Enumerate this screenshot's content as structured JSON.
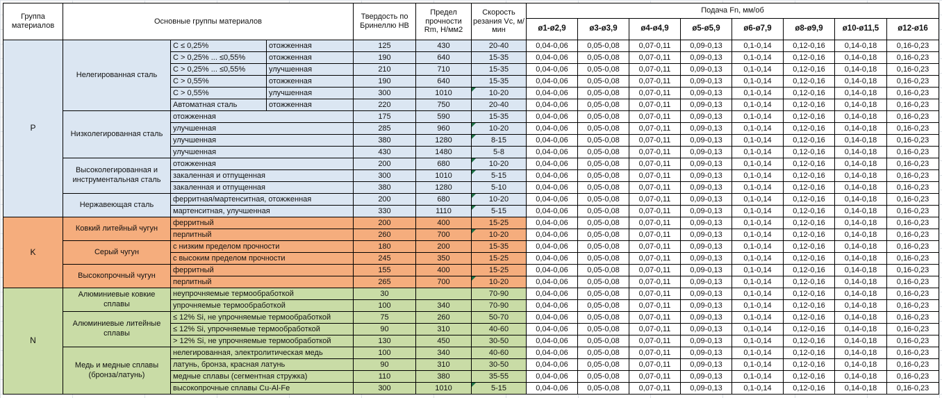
{
  "header": {
    "group_col": "Группа материалов",
    "material_col": "Основные группы материалов",
    "hb_col": "Твердость по Бринеллю HB",
    "rm_col": "Предел прочности Rm, Н/мм2",
    "vc_col": "Скорость резания Vc, м/мин",
    "feed_title": "Подача Fn, мм/об",
    "feed_cols": [
      "ø1-ø2,9",
      "ø3-ø3,9",
      "ø4-ø4,9",
      "ø5-ø5,9",
      "ø6-ø7,9",
      "ø8-ø9,9",
      "ø10-ø11,5",
      "ø12-ø16"
    ]
  },
  "feed_values": [
    "0,04-0,06",
    "0,05-0,08",
    "0,07-0,11",
    "0,09-0,13",
    "0,1-0,14",
    "0,12-0,16",
    "0,14-0,18",
    "0,16-0,23"
  ],
  "colors": {
    "group_p": "#dbe6f2",
    "group_k": "#f5ad7d",
    "group_n": "#c9dca6",
    "flag_triangle": "#1e7145",
    "border": "#000000"
  },
  "groups": [
    {
      "code": "P",
      "color": "#dbe6f2",
      "families": [
        {
          "name": "Нелегированная сталь",
          "rows": [
            {
              "spec": "C ≤ 0,25%",
              "state": "отожженная",
              "hb": "125",
              "rm": "430",
              "vc": "20-40",
              "flag": false
            },
            {
              "spec": "C > 0,25% ... ≤0,55%",
              "state": "отожженная",
              "hb": "190",
              "rm": "640",
              "vc": "15-35",
              "flag": false
            },
            {
              "spec": "C > 0,25% ... ≤0,55%",
              "state": "улучшенная",
              "hb": "210",
              "rm": "710",
              "vc": "15-35",
              "flag": false
            },
            {
              "spec": "C > 0,55%",
              "state": "отожженная",
              "hb": "190",
              "rm": "640",
              "vc": "15-35",
              "flag": false
            },
            {
              "spec": "C > 0,55%",
              "state": "улучшенная",
              "hb": "300",
              "rm": "1010",
              "vc": "10-20",
              "flag": true
            },
            {
              "spec": "Автоматная сталь",
              "state": "отожженная",
              "hb": "220",
              "rm": "750",
              "vc": "20-40",
              "flag": false
            }
          ]
        },
        {
          "name": "Низколегированная сталь",
          "rows": [
            {
              "spec": "отожженная",
              "state": null,
              "hb": "175",
              "rm": "590",
              "vc": "15-35",
              "flag": false
            },
            {
              "spec": "улучшенная",
              "state": null,
              "hb": "285",
              "rm": "960",
              "vc": "10-20",
              "flag": true
            },
            {
              "spec": "улучшенная",
              "state": null,
              "hb": "380",
              "rm": "1280",
              "vc": "8-15",
              "flag": true
            },
            {
              "spec": "улучшенная",
              "state": null,
              "hb": "430",
              "rm": "1480",
              "vc": "5-8",
              "flag": false
            }
          ]
        },
        {
          "name": "Высоколегированная и инструментальная сталь",
          "rows": [
            {
              "spec": "отожженная",
              "state": null,
              "hb": "200",
              "rm": "680",
              "vc": "10-20",
              "flag": true
            },
            {
              "spec": "закаленная и отпущенная",
              "state": null,
              "hb": "300",
              "rm": "1010",
              "vc": "5-15",
              "flag": true
            },
            {
              "spec": "закаленная и отпущенная",
              "state": null,
              "hb": "380",
              "rm": "1280",
              "vc": "5-10",
              "flag": false
            }
          ]
        },
        {
          "name": "Нержавеющая сталь",
          "rows": [
            {
              "spec": "ферритная/мартенситная, отожженная",
              "state": null,
              "hb": "200",
              "rm": "680",
              "vc": "10-20",
              "flag": true
            },
            {
              "spec": "мартенситная, улучшенная",
              "state": null,
              "hb": "330",
              "rm": "1110",
              "vc": "5-15",
              "flag": true
            }
          ]
        }
      ]
    },
    {
      "code": "K",
      "color": "#f5ad7d",
      "families": [
        {
          "name": "Ковкий литейный чугун",
          "rows": [
            {
              "spec": "ферритный",
              "state": null,
              "hb": "200",
              "rm": "400",
              "vc": "15-25",
              "flag": false
            },
            {
              "spec": "перлитный",
              "state": null,
              "hb": "260",
              "rm": "700",
              "vc": "10-20",
              "flag": true
            }
          ]
        },
        {
          "name": "Серый чугун",
          "rows": [
            {
              "spec": "с низким пределом прочности",
              "state": null,
              "hb": "180",
              "rm": "200",
              "vc": "15-35",
              "flag": false
            },
            {
              "spec": "с высоким пределом прочности",
              "state": null,
              "hb": "245",
              "rm": "350",
              "vc": "15-25",
              "flag": false
            }
          ]
        },
        {
          "name": "Высокопрочный чугун",
          "rows": [
            {
              "spec": "ферритный",
              "state": null,
              "hb": "155",
              "rm": "400",
              "vc": "15-25",
              "flag": false
            },
            {
              "spec": "перлитный",
              "state": null,
              "hb": "265",
              "rm": "700",
              "vc": "10-20",
              "flag": true
            }
          ]
        }
      ]
    },
    {
      "code": "N",
      "color": "#c9dca6",
      "families": [
        {
          "name": "Алюминиевые ковкие сплавы",
          "rows": [
            {
              "spec": "неупрочняемые термообработкой",
              "state": null,
              "hb": "30",
              "rm": "",
              "vc": "70-90",
              "flag": false
            },
            {
              "spec": "упрочняемые термообработкой",
              "state": null,
              "hb": "100",
              "rm": "340",
              "vc": "70-90",
              "flag": false
            }
          ]
        },
        {
          "name": "Алюминиевые литейные сплавы",
          "rows": [
            {
              "spec": "≤ 12% Si, не упрочняемые термообработкой",
              "state": null,
              "hb": "75",
              "rm": "260",
              "vc": "50-70",
              "flag": false
            },
            {
              "spec": "≤ 12% Si, упрочняемые термообработкой",
              "state": null,
              "hb": "90",
              "rm": "310",
              "vc": "40-60",
              "flag": false
            },
            {
              "spec": "> 12% Si, не упрочняемые термообработкой",
              "state": null,
              "hb": "130",
              "rm": "450",
              "vc": "30-50",
              "flag": false
            }
          ]
        },
        {
          "name": "Медь и медные сплавы (бронза/латунь)",
          "rows": [
            {
              "spec": "нелегированная, электролитическая медь",
              "state": null,
              "hb": "100",
              "rm": "340",
              "vc": "40-60",
              "flag": false
            },
            {
              "spec": "латунь, бронза, красная латунь",
              "state": null,
              "hb": "90",
              "rm": "310",
              "vc": "30-50",
              "flag": false
            },
            {
              "spec": "медные сплавы (сегментная стружка)",
              "state": null,
              "hb": "110",
              "rm": "380",
              "vc": "35-55",
              "flag": false
            },
            {
              "spec": "высокопрочные сплавы Cu-Al-Fe",
              "state": null,
              "hb": "300",
              "rm": "1010",
              "vc": "5-15",
              "flag": true
            }
          ]
        }
      ]
    }
  ]
}
